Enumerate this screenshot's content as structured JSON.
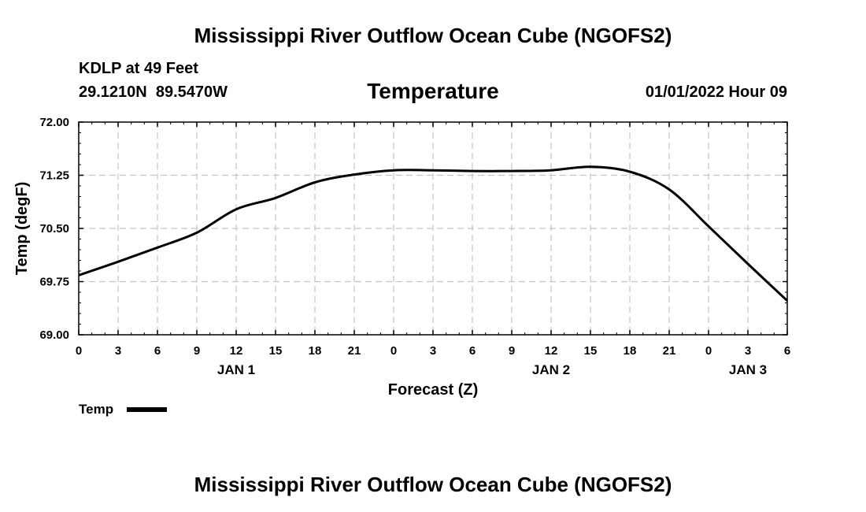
{
  "header": {
    "title": "Mississippi River Outflow Ocean Cube (NGOFS2)",
    "station": "KDLP at 49 Feet",
    "coords": "29.1210N  89.5470W",
    "datetime": "01/01/2022 Hour 09"
  },
  "footer": {
    "title": "Mississippi River Outflow Ocean Cube (NGOFS2)"
  },
  "chart_data": {
    "type": "line",
    "title": "Temperature",
    "xlabel": "Forecast (Z)",
    "ylabel": "Temp (degF)",
    "ylim": [
      69.0,
      72.0
    ],
    "yticks": [
      "72.00",
      "71.25",
      "70.50",
      "69.75",
      "69.00"
    ],
    "ytick_values": [
      72.0,
      71.25,
      70.5,
      69.75,
      69.0
    ],
    "x_hours_range": [
      0,
      54
    ],
    "xtick_hours": [
      0,
      3,
      6,
      9,
      12,
      15,
      18,
      21,
      24,
      27,
      30,
      33,
      36,
      39,
      42,
      45,
      48,
      51,
      54
    ],
    "xtick_labels": [
      "0",
      "3",
      "6",
      "9",
      "12",
      "15",
      "18",
      "21",
      "0",
      "3",
      "6",
      "9",
      "12",
      "15",
      "18",
      "21",
      "0",
      "3",
      "6"
    ],
    "day_labels": [
      {
        "label": "JAN 1",
        "hour": 12
      },
      {
        "label": "JAN 2",
        "hour": 36
      },
      {
        "label": "JAN 3",
        "hour": 51
      }
    ],
    "grid": true,
    "legend": {
      "label": "Temp",
      "placement": "bottom-left"
    },
    "series": [
      {
        "name": "Temp",
        "x": [
          0,
          3,
          6,
          9,
          12,
          15,
          18,
          21,
          24,
          27,
          30,
          33,
          36,
          39,
          42,
          45,
          48,
          51,
          54
        ],
        "values": [
          69.84,
          70.03,
          70.23,
          70.44,
          70.77,
          70.93,
          71.15,
          71.26,
          71.32,
          71.32,
          71.31,
          71.31,
          71.32,
          71.37,
          71.3,
          71.05,
          70.53,
          70.0,
          69.48
        ]
      }
    ]
  }
}
